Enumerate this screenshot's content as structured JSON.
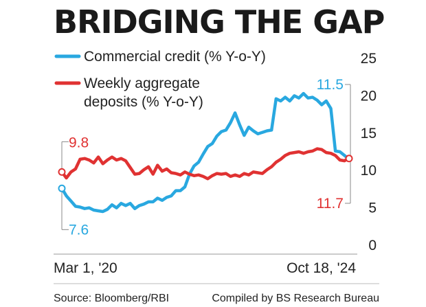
{
  "chart_data": {
    "type": "line",
    "title": "BRIDGING THE GAP",
    "x_start_label": "Mar 1, '20",
    "x_end_label": "Oct 18, '24",
    "ylim": [
      0,
      25
    ],
    "yticks": [
      "0",
      "5",
      "10",
      "15",
      "20",
      "25"
    ],
    "grid": false,
    "legend_position": "top-left",
    "series": [
      {
        "name": "Commercial credit (% Y-o-Y)",
        "color": "#29a8e0",
        "values": [
          7.6,
          6.6,
          5.9,
          5.2,
          5.1,
          4.9,
          5.0,
          4.7,
          4.6,
          4.5,
          4.8,
          5.4,
          5.0,
          5.6,
          5.3,
          5.6,
          4.9,
          5.3,
          5.5,
          5.8,
          5.8,
          6.3,
          6.0,
          6.4,
          6.6,
          7.3,
          7.3,
          7.8,
          9.5,
          10.6,
          11.1,
          12.2,
          13.2,
          13.6,
          14.6,
          15.2,
          15.4,
          16.4,
          17.7,
          16.1,
          14.7,
          15.8,
          15.3,
          14.9,
          15.1,
          15.3,
          15.4,
          19.6,
          19.3,
          19.8,
          19.3,
          20.0,
          19.7,
          20.3,
          19.7,
          19.8,
          19.4,
          18.8,
          19.3,
          18.3,
          12.6,
          12.5,
          12.0,
          11.5
        ],
        "start_label": "7.6",
        "end_label": "11.5"
      },
      {
        "name": "Weekly aggregate deposits (% Y-o-Y)",
        "color": "#e03232",
        "values": [
          9.8,
          9.0,
          9.8,
          10.2,
          11.5,
          11.6,
          11.4,
          11.0,
          11.8,
          10.9,
          11.4,
          11.8,
          11.4,
          11.6,
          11.3,
          10.4,
          9.5,
          9.6,
          10.1,
          10.5,
          9.5,
          10.7,
          9.9,
          10.2,
          9.7,
          9.6,
          9.4,
          9.8,
          9.5,
          9.3,
          9.4,
          9.2,
          8.9,
          9.3,
          9.6,
          9.5,
          9.6,
          9.2,
          9.4,
          9.2,
          9.6,
          9.4,
          9.8,
          9.7,
          9.6,
          10.1,
          10.5,
          11.1,
          11.5,
          12.0,
          12.3,
          12.4,
          12.5,
          12.3,
          12.5,
          12.6,
          12.9,
          12.8,
          12.4,
          12.3,
          12.0,
          11.4,
          11.3,
          11.7
        ],
        "start_label": "9.8",
        "end_label": "11.7"
      }
    ]
  },
  "footer": {
    "source": "Source: Bloomberg/RBI",
    "compiled": "Compiled by BS Research Bureau"
  }
}
